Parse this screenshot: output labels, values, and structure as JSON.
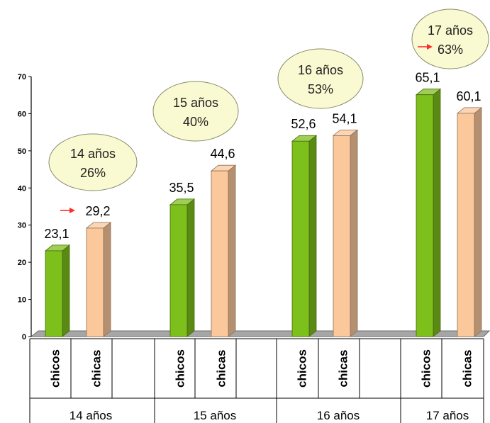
{
  "chart_data": {
    "type": "bar",
    "title": "",
    "xlabel": "",
    "ylabel": "",
    "ylim": [
      0,
      70
    ],
    "yticks": [
      "0",
      "10",
      "20",
      "30",
      "40",
      "50",
      "60",
      "70"
    ],
    "grid": false,
    "groups": [
      {
        "label": "14 años",
        "bubble": {
          "title": "14 años",
          "value": "26%"
        }
      },
      {
        "label": "15 años",
        "bubble": {
          "title": "15 años",
          "value": "40%"
        }
      },
      {
        "label": "16 años",
        "bubble": {
          "title": "16 años",
          "value": "53%"
        }
      },
      {
        "label": "17 años",
        "bubble": {
          "title": "17 años",
          "value": "63%"
        }
      }
    ],
    "series": [
      {
        "name": "chicos",
        "color": "#7dbf1b",
        "values": [
          23.1,
          35.5,
          52.6,
          65.1
        ],
        "labels": [
          "23,1",
          "35,5",
          "52,6",
          "65,1"
        ]
      },
      {
        "name": "chicas",
        "color": "#fbc89b",
        "values": [
          29.2,
          44.6,
          54.1,
          60.1
        ],
        "labels": [
          "29,2",
          "44,6",
          "54,1",
          "60,1"
        ]
      }
    ],
    "highlight_arrows": [
      "14 años chicas",
      "17 años bubble"
    ],
    "arrow_color": "#ff2b2b",
    "bubble_color": "#fafad2"
  }
}
